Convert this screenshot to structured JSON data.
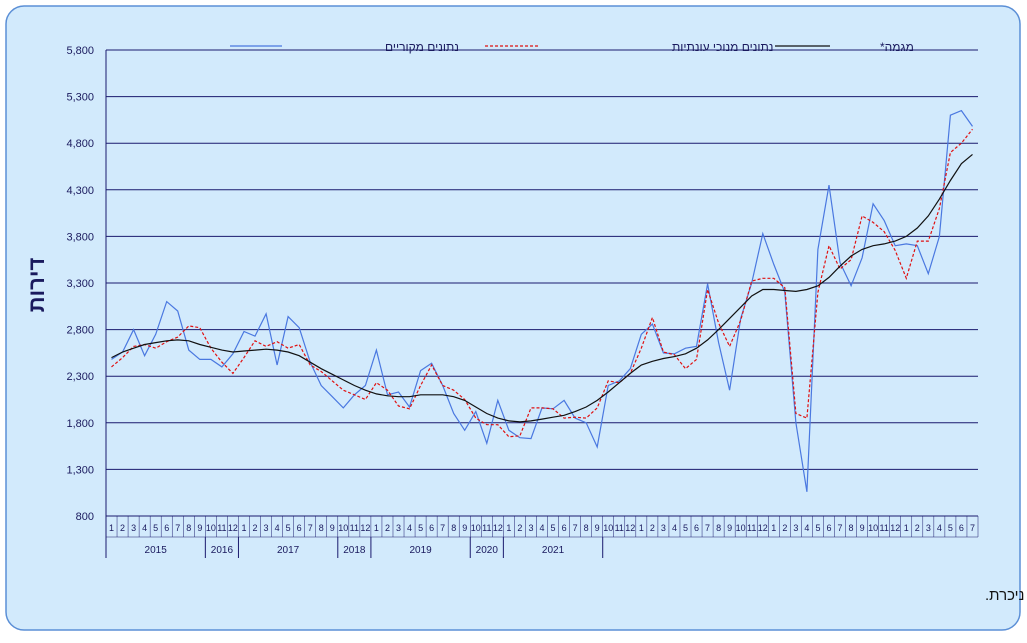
{
  "chart_data": {
    "type": "line",
    "y_label": "דירות",
    "footnote": "* שלושת האומדנים האחרונים של המגמה עשויים להשתנות במידה ניכרת.",
    "categories": [
      "1",
      "2",
      "3",
      "4",
      "5",
      "6",
      "7",
      "8",
      "9",
      "10",
      "11",
      "12",
      "1",
      "2",
      "3",
      "4",
      "5",
      "6",
      "7",
      "8",
      "9",
      "10",
      "11",
      "12",
      "1",
      "2",
      "3",
      "4",
      "5",
      "6",
      "7",
      "8",
      "9",
      "10",
      "11",
      "12",
      "1",
      "2",
      "3",
      "4",
      "5",
      "6",
      "7",
      "8",
      "9",
      "10",
      "11",
      "12",
      "1",
      "2",
      "3",
      "4",
      "5",
      "6",
      "7",
      "8",
      "9",
      "10",
      "11",
      "12",
      "1",
      "2",
      "3",
      "4",
      "5",
      "6",
      "7",
      "8",
      "9",
      "10",
      "11",
      "12",
      "1",
      "2",
      "3",
      "4",
      "5",
      "6",
      "7"
    ],
    "x_groups": [
      "2015",
      "2016",
      "2017",
      "2018",
      "2019",
      "2020",
      "2021"
    ],
    "ylim": [
      800,
      5800
    ],
    "yticks": [
      800,
      {
        "value": 1300,
        "label": "1,300"
      },
      {
        "value": 1800,
        "label": "1,800"
      },
      {
        "value": 2300,
        "label": "2,300"
      },
      {
        "value": 2800,
        "label": "2,800"
      },
      {
        "value": 3300,
        "label": "3,300"
      },
      {
        "value": 3800,
        "label": "3,800"
      },
      {
        "value": 4300,
        "label": "4,300"
      },
      {
        "value": 4800,
        "label": "4,800"
      },
      {
        "value": 5300,
        "label": "5,300"
      },
      {
        "value": 5800,
        "label": "5,800"
      }
    ],
    "grid": true,
    "series": [
      {
        "name": "נתונים מקוריים",
        "color": "#4a78e0",
        "dash": false,
        "values": [
          2480,
          2560,
          2800,
          2520,
          2750,
          3100,
          3000,
          2580,
          2480,
          2480,
          2400,
          2540,
          2780,
          2730,
          2970,
          2420,
          2940,
          2820,
          2450,
          2200,
          2080,
          1960,
          2100,
          2200,
          2580,
          2100,
          2130,
          1970,
          2360,
          2440,
          2200,
          1900,
          1720,
          1920,
          1580,
          2040,
          1720,
          1640,
          1630,
          1960,
          1950,
          2040,
          1850,
          1800,
          1540,
          2200,
          2250,
          2380,
          2750,
          2860,
          2550,
          2540,
          2600,
          2620,
          3290,
          2660,
          2150,
          2920,
          3300,
          3830,
          3500,
          3200,
          1800,
          1060,
          3660,
          4350,
          3520,
          3270,
          3570,
          4150,
          3970,
          3700,
          3720,
          3700,
          3400,
          3800,
          5100,
          5150,
          4980
        ]
      },
      {
        "name": "נתונים מנוכי עונתיות",
        "color": "#e01010",
        "dash": true,
        "values": [
          2400,
          2500,
          2620,
          2640,
          2600,
          2670,
          2720,
          2840,
          2820,
          2600,
          2450,
          2330,
          2500,
          2680,
          2620,
          2670,
          2600,
          2640,
          2420,
          2350,
          2250,
          2150,
          2100,
          2050,
          2230,
          2150,
          1980,
          1950,
          2200,
          2420,
          2200,
          2150,
          2050,
          1850,
          1780,
          1780,
          1650,
          1660,
          1960,
          1960,
          1950,
          1850,
          1860,
          1850,
          1960,
          2250,
          2230,
          2330,
          2600,
          2930,
          2560,
          2530,
          2380,
          2480,
          3230,
          2870,
          2620,
          2900,
          3320,
          3350,
          3350,
          3250,
          1900,
          1850,
          3200,
          3700,
          3450,
          3550,
          4020,
          3950,
          3850,
          3650,
          3350,
          3750,
          3750,
          4100,
          4700,
          4800,
          4950
        ]
      },
      {
        "name": "מגמה*",
        "color": "#111111",
        "dash": false,
        "values": [
          2500,
          2560,
          2600,
          2640,
          2660,
          2680,
          2690,
          2680,
          2640,
          2610,
          2580,
          2560,
          2570,
          2580,
          2590,
          2580,
          2560,
          2520,
          2450,
          2380,
          2320,
          2260,
          2200,
          2150,
          2110,
          2090,
          2080,
          2080,
          2100,
          2100,
          2100,
          2080,
          2040,
          1970,
          1900,
          1850,
          1820,
          1810,
          1820,
          1840,
          1860,
          1880,
          1920,
          1970,
          2040,
          2130,
          2230,
          2330,
          2420,
          2460,
          2490,
          2510,
          2540,
          2600,
          2690,
          2800,
          2920,
          3040,
          3160,
          3230,
          3230,
          3220,
          3210,
          3230,
          3270,
          3360,
          3480,
          3590,
          3660,
          3700,
          3720,
          3750,
          3800,
          3890,
          4020,
          4200,
          4400,
          4580,
          4680
        ]
      }
    ]
  }
}
